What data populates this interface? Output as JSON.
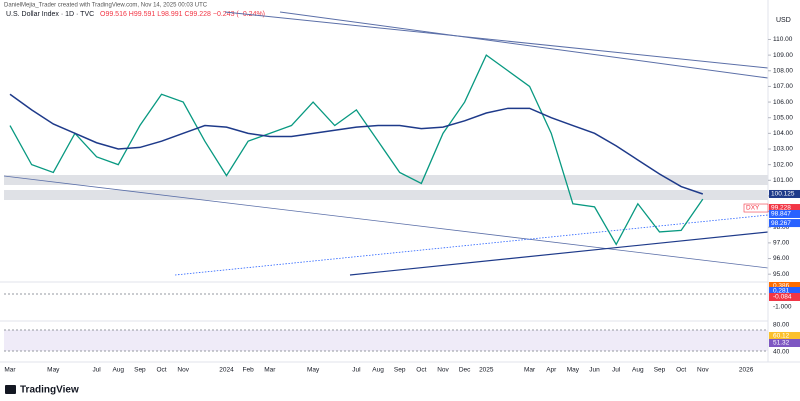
{
  "header": {
    "credit": "DanielMejia_Trader created with TradingView.com, Nov 14, 2025 00:03 UTC",
    "title": "U.S. Dollar Index · 1D · TVC",
    "ohlc": "O99.516 H99.591 L98.991 C99.228 −0.243 (−0.24%)",
    "currency": "USD",
    "brand": "TradingView"
  },
  "chart_data": {
    "type": "line",
    "categories": [
      "Mar",
      null,
      "May",
      null,
      "Jul",
      "Aug",
      "Sep",
      "Oct",
      "Nov",
      null,
      "2024",
      "Feb",
      "Mar",
      null,
      "May",
      null,
      "Jul",
      "Aug",
      "Sep",
      "Oct",
      "Nov",
      "Dec",
      "2025",
      null,
      "Mar",
      "Apr",
      "May",
      "Jun",
      "Jul",
      "Aug",
      "Sep",
      "Oct",
      "Nov",
      null,
      "2026"
    ],
    "series": [
      {
        "color": "#089981",
        "values": [
          104.5,
          102,
          101.5,
          104,
          102.5,
          102,
          104.5,
          106.5,
          106,
          103.5,
          101.3,
          103.5,
          104,
          104.5,
          106,
          104.5,
          105.5,
          103.5,
          101.5,
          100.8,
          104,
          106,
          109,
          108,
          107,
          104,
          99.5,
          99.3,
          96.9,
          99.5,
          97.7,
          97.8,
          99.8,
          null,
          null
        ]
      },
      {
        "color": "#1e3a8a",
        "values": [
          106.5,
          105.5,
          104.6,
          104,
          103.4,
          103,
          103.1,
          103.5,
          104,
          104.5,
          104.4,
          104,
          103.8,
          103.8,
          104,
          104.2,
          104.4,
          104.5,
          104.5,
          104.3,
          104.4,
          104.8,
          105.3,
          105.6,
          105.6,
          105,
          104.5,
          104,
          103.2,
          102.3,
          101.4,
          100.6,
          100.125,
          null,
          null
        ]
      }
    ],
    "ylim": [
      94.5,
      111.5
    ],
    "yticks": [
      {
        "value": 95,
        "label": "95.00"
      },
      {
        "value": 96,
        "label": "96.00"
      },
      {
        "value": 97,
        "label": "97.00"
      },
      {
        "value": 98,
        "label": "98.00"
      },
      {
        "value": 99,
        "label": "99.00"
      },
      {
        "value": 100,
        "label": "100.00"
      },
      {
        "value": 101,
        "label": "101.00"
      },
      {
        "value": 102,
        "label": "102.00"
      },
      {
        "value": 103,
        "label": "103.00"
      },
      {
        "value": 104,
        "label": "104.00"
      },
      {
        "value": 105,
        "label": "105.00"
      },
      {
        "value": 106,
        "label": "106.00"
      },
      {
        "value": 107,
        "label": "107.00"
      },
      {
        "value": 108,
        "label": "108.00"
      },
      {
        "value": 109,
        "label": "109.00"
      },
      {
        "value": 110,
        "label": "110.00"
      }
    ],
    "price_tags": [
      {
        "value": 100.125,
        "color": "#1e3a8a"
      },
      {
        "value": 99.228,
        "color": "#f23645",
        "symbol": "DXY"
      },
      {
        "value": 98.847,
        "color": "#2962ff"
      },
      {
        "value": 98.267,
        "color": "#2962ff"
      }
    ]
  },
  "macd_labels": [
    "0.386",
    "0.281",
    "-0.084",
    "-1.000"
  ],
  "rsi_labels": [
    "80.00",
    "60.12",
    "51.32",
    "40.00"
  ]
}
